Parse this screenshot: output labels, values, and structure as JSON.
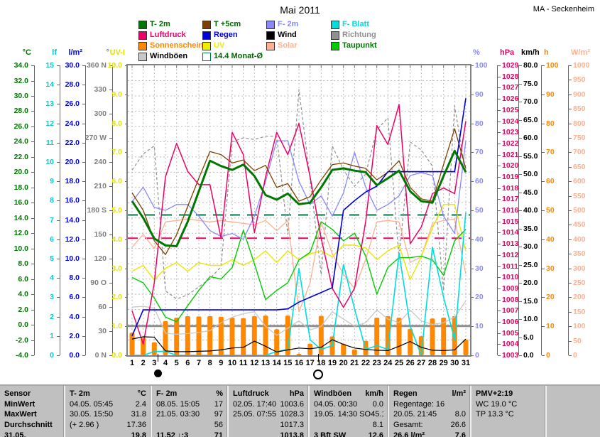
{
  "header": {
    "title": "Mai 2011",
    "station": "MA - Seckenheim"
  },
  "legend": {
    "columns": [
      [
        {
          "label": "T- 2m",
          "swatch": "#007700",
          "text": "#006600"
        },
        {
          "label": "Luftdruck",
          "swatch": "#ee0066",
          "text": "#ee0066"
        },
        {
          "label": "Sonnenschein",
          "swatch": "#ff8800",
          "text": "#ff8800"
        },
        {
          "label": "Windböen",
          "swatch": "#c8c8c8",
          "text": "#000000"
        }
      ],
      [
        {
          "label": "T +5cm",
          "swatch": "#7f3f00",
          "text": "#006600"
        },
        {
          "label": "Regen",
          "swatch": "#0000dd",
          "text": "#0000dd"
        },
        {
          "label": "UV",
          "swatch": "#eeee00",
          "text": "#eeee00"
        },
        {
          "label": "14.4 Monat-Ø",
          "swatch": "#ffffff",
          "outline": "#007744",
          "text": "#006600"
        }
      ],
      [
        {
          "label": "F- 2m",
          "swatch": "#8888ff",
          "text": "#8888ff"
        },
        {
          "label": "Wind",
          "swatch": "#000000",
          "text": "#000000"
        },
        {
          "label": "Solar",
          "swatch": "#ffb090",
          "text": "#ffb090"
        }
      ],
      [
        {
          "label": "F- Blatt",
          "swatch": "#00dddd",
          "text": "#00dddd"
        },
        {
          "label": "Richtung",
          "swatch": "#909090",
          "text": "#909090"
        },
        {
          "label": "Taupunkt",
          "swatch": "#00cc00",
          "text": "#007700"
        }
      ]
    ]
  },
  "axes": {
    "left": [
      {
        "id": "celsius",
        "unit": "°C",
        "color": "#007700",
        "labels": [
          "34.0",
          "32.0",
          "30.0",
          "28.0",
          "26.0",
          "24.0",
          "22.0",
          "20.0",
          "18.0",
          "16.0",
          "14.0",
          "12.0",
          "10.0",
          "8.0",
          "6.0",
          "4.0",
          "2.0",
          "0.0",
          "-2.0",
          "-4.0"
        ]
      },
      {
        "id": "lf",
        "unit": "lf",
        "color": "#00cccc",
        "labels": [
          "15",
          "14",
          "13",
          "12",
          "11",
          "10",
          "9",
          "8",
          "7",
          "6",
          "5",
          "4",
          "3",
          "2",
          "1",
          "0"
        ]
      },
      {
        "id": "liter",
        "unit": "l/m²",
        "color": "#0000ee",
        "labels": [
          "30.0",
          "28.0",
          "26.0",
          "24.0",
          "22.0",
          "20.0",
          "18.0",
          "16.0",
          "14.0",
          "12.0",
          "10.0",
          "8.0",
          "6.0",
          "4.0",
          "2.0",
          "0.0"
        ]
      },
      {
        "id": "grad",
        "unit": "°",
        "color": "#808080",
        "labels": [
          "360 N",
          "330",
          "300",
          "270 W",
          "240",
          "210",
          "180 S",
          "150",
          "120",
          "90  O",
          "60",
          "30",
          "0  N"
        ]
      },
      {
        "id": "uvi",
        "unit": "UV-I",
        "color": "#e2e200",
        "labels": [
          "10.0",
          "9.0",
          "8.0",
          "7.0",
          "6.0",
          "5.0",
          "4.0",
          "3.0",
          "2.0",
          "1.0",
          "0.0"
        ]
      }
    ],
    "right": [
      {
        "id": "prozent",
        "unit": "%",
        "color": "#8888ff",
        "labels": [
          "100",
          "90",
          "80",
          "70",
          "60",
          "50",
          "40",
          "30",
          "20",
          "10",
          "0"
        ]
      },
      {
        "id": "hpa",
        "unit": "hPa",
        "color": "#ee0066",
        "labels": [
          "1029",
          "1028",
          "1027",
          "1026",
          "1025",
          "1024",
          "1023",
          "1022",
          "1021",
          "1020",
          "1019",
          "1018",
          "1017",
          "1016",
          "1015",
          "1014",
          "1013",
          "1012",
          "1011",
          "1010",
          "1009",
          "1008",
          "1007",
          "1006",
          "1005",
          "1004",
          "1003"
        ]
      },
      {
        "id": "kmh",
        "unit": "km/h",
        "color": "#000000",
        "labels": [
          "80.0",
          "75.0",
          "70.0",
          "65.0",
          "60.0",
          "55.0",
          "50.0",
          "45.0",
          "40.0",
          "35.0",
          "30.0",
          "25.0",
          "20.0",
          "15.0",
          "10.0",
          "5.0",
          "0.0"
        ]
      },
      {
        "id": "stunden",
        "unit": "h",
        "color": "#ff8800",
        "labels": [
          "100",
          "90",
          "80",
          "70",
          "60",
          "50",
          "40",
          "30",
          "20",
          "10",
          "0"
        ]
      },
      {
        "id": "wm2",
        "unit": "W/m²",
        "color": "#ffb090",
        "labels": [
          "1000",
          "950",
          "900",
          "850",
          "800",
          "750",
          "700",
          "650",
          "600",
          "550",
          "500",
          "450",
          "400",
          "350",
          "300",
          "250",
          "200",
          "150",
          "100",
          "50",
          "0"
        ]
      }
    ]
  },
  "chart_data": {
    "type": "multi-series-line+bar",
    "title": "Mai 2011",
    "x_days": [
      1,
      2,
      3,
      4,
      5,
      6,
      7,
      8,
      9,
      10,
      11,
      12,
      13,
      14,
      15,
      16,
      17,
      18,
      19,
      20,
      21,
      22,
      23,
      24,
      25,
      26,
      27,
      28,
      29,
      30,
      31
    ],
    "grid": {
      "vertical_per_day": true,
      "horizontal_divisions": 19
    },
    "bars": {
      "id": "sonnenschein",
      "name": "Sonnenschein",
      "unit": "h",
      "color": "#ff8800",
      "axis_range": [
        0,
        100
      ],
      "values": [
        7.8,
        6.0,
        4.5,
        11.8,
        13.0,
        13.5,
        13.4,
        13.5,
        13.3,
        13.0,
        12.8,
        13.5,
        13.7,
        9.0,
        13.7,
        0.5,
        4.0,
        13.6,
        6.5,
        4.0,
        2.0,
        5.0,
        13.0,
        13.5,
        13.0,
        9.1,
        6.6,
        12.7,
        13.0,
        13.5,
        5.4
      ]
    },
    "series": [
      {
        "id": "richtung",
        "name": "Richtung",
        "unit": "°",
        "color": "#909090",
        "dash": "4,3",
        "width": 1.2,
        "axis_range": [
          0,
          360
        ],
        "values": [
          230,
          250,
          260,
          80,
          70,
          75,
          85,
          95,
          110,
          265,
          270,
          268,
          272,
          272,
          150,
          330,
          220,
          100,
          260,
          230,
          210,
          225,
          280,
          295,
          120,
          265,
          255,
          235,
          80,
          310,
          225
        ]
      },
      {
        "id": "windboeen",
        "name": "Windböen",
        "unit": "km/h",
        "color": "#c8c8c8",
        "width": 1.3,
        "axis_range": [
          0,
          80
        ],
        "values": [
          13.3,
          13.5,
          13.0,
          6.1,
          5.8,
          6.0,
          6.3,
          6.8,
          9.0,
          10.5,
          11.5,
          12.0,
          8.0,
          5.5,
          7.5,
          9.5,
          7.0,
          8.0,
          12.0,
          10.0,
          8.0,
          9.0,
          12.5,
          10.0,
          9.0,
          12.5,
          9.5,
          8.5,
          9.0,
          10.5,
          15.0
        ]
      },
      {
        "id": "solar",
        "name": "Solar",
        "unit": "W/m²",
        "color": "#ffb090",
        "width": 1.3,
        "axis_range": [
          0,
          1000
        ],
        "values": [
          373,
          417,
          368,
          460,
          465,
          470,
          465,
          460,
          465,
          460,
          455,
          450,
          465,
          430,
          465,
          150,
          250,
          460,
          350,
          280,
          230,
          330,
          460,
          465,
          460,
          320,
          340,
          455,
          465,
          470,
          280
        ]
      },
      {
        "id": "uv",
        "name": "UV",
        "unit": "UV-I",
        "color": "#e8e800",
        "width": 1.4,
        "axis_range": [
          0,
          10
        ],
        "values": [
          2.9,
          3.1,
          2.6,
          3.0,
          3.2,
          2.9,
          3.2,
          3.1,
          3.1,
          3.3,
          3.1,
          3.3,
          3.6,
          3.2,
          3.6,
          3.3,
          3.5,
          3.6,
          3.4,
          3.8,
          3.8,
          3.7,
          3.3,
          3.6,
          3.8,
          2.6,
          3.4,
          4.4,
          5.2,
          5.2,
          3.6
        ]
      },
      {
        "id": "taupunkt",
        "name": "Taupunkt",
        "unit": "°C",
        "color": "#00cc00",
        "width": 1.4,
        "axis_range": [
          -4,
          34
        ],
        "values": [
          6.2,
          5.5,
          3.5,
          1.0,
          0.4,
          2.5,
          4.5,
          6.3,
          6.0,
          7.5,
          12.4,
          8.0,
          3.3,
          4.5,
          5.5,
          8.5,
          9.5,
          13.5,
          12.5,
          11.0,
          12.0,
          9.0,
          4.0,
          7.5,
          8.8,
          8.8,
          9.0,
          8.5,
          6.5,
          11.0,
          12.5
        ]
      },
      {
        "id": "fblatt",
        "name": "F- Blatt",
        "unit": "lf",
        "color": "#00dddd",
        "width": 1.6,
        "axis_range": [
          0,
          15
        ],
        "values": [
          0,
          0,
          0.2,
          0.2,
          0,
          0,
          0,
          0,
          0,
          0,
          0,
          0,
          0,
          0.2,
          0.3,
          4.5,
          0.8,
          0.3,
          0.5,
          4.7,
          2.4,
          0.3,
          0.5,
          0.3,
          5.3,
          1.5,
          0,
          5.6,
          3.0,
          0.8,
          7.4
        ]
      },
      {
        "id": "f2m",
        "name": "F- 2m",
        "unit": "%",
        "color": "#8888ff",
        "width": 1.3,
        "axis_range": [
          0,
          100
        ],
        "values": [
          53,
          58,
          51,
          50,
          52,
          52,
          48,
          43,
          41,
          42,
          40,
          48,
          60,
          74,
          74,
          60,
          52,
          55,
          48,
          56,
          70,
          58,
          50,
          52,
          55,
          62,
          63,
          62,
          48,
          42,
          74
        ]
      },
      {
        "id": "luftdruck",
        "name": "Luftdruck",
        "unit": "hPa",
        "color": "#ee0066",
        "width": 1.5,
        "axis_range": [
          1003,
          1029
        ],
        "values": [
          1007,
          1004,
          1009.5,
          1019,
          1022,
          1019.5,
          1018.3,
          1018.3,
          1013.5,
          1023,
          1021,
          1014,
          1019,
          1023,
          1021,
          1023.8,
          1019,
          1013.5,
          1009,
          1007.3,
          1009,
          1015,
          1023.6,
          1021.9,
          1025.5,
          1013,
          1014.5,
          1017.5,
          1018,
          1017.5,
          1024
        ]
      },
      {
        "id": "t5cm",
        "name": "T +5cm",
        "unit": "°C",
        "color": "#7f3f00",
        "width": 1.3,
        "axis_range": [
          -4,
          34
        ],
        "values": [
          17.3,
          15.0,
          11.0,
          9.2,
          11.8,
          15.5,
          19.2,
          22.7,
          22.3,
          21.2,
          21.6,
          20.2,
          20.9,
          18.0,
          18.5,
          16.2,
          16.8,
          19.0,
          21.0,
          21.2,
          20.8,
          20.5,
          19.0,
          20.0,
          21.5,
          18.0,
          16.5,
          16.2,
          21.0,
          25.7,
          20.5
        ]
      },
      {
        "id": "regen",
        "name": "Regen (kumuliert)",
        "unit": "l/m²",
        "color": "#0000dd",
        "width": 1.6,
        "axis_range": [
          0,
          30
        ],
        "values": [
          2.0,
          4.7,
          4.7,
          4.7,
          4.7,
          4.7,
          4.7,
          4.7,
          4.7,
          4.7,
          4.7,
          4.7,
          4.7,
          4.7,
          4.8,
          5.5,
          6.0,
          6.5,
          7.0,
          15.0,
          16.0,
          16.9,
          17.5,
          19.0,
          19.0,
          19.0,
          19.0,
          19.0,
          19.0,
          19.0,
          26.6
        ]
      },
      {
        "id": "wind",
        "name": "Wind",
        "unit": "km/h",
        "color": "#000000",
        "width": 1.2,
        "axis_range": [
          0,
          80
        ],
        "values": [
          4.5,
          5.1,
          5.0,
          1.2,
          1.0,
          1.0,
          1.1,
          1.2,
          1.5,
          2.0,
          2.2,
          3.9,
          2.5,
          0.9,
          1.5,
          2.0,
          1.8,
          2.2,
          4.3,
          3.0,
          2.0,
          1.6,
          1.4,
          1.3,
          2.5,
          3.8,
          2.2,
          1.4,
          1.3,
          1.5,
          4.5
        ]
      },
      {
        "id": "t2m",
        "name": "T- 2m",
        "unit": "°C",
        "color": "#007700",
        "width": 3,
        "axis_range": [
          -4,
          34
        ],
        "values": [
          16.2,
          14.0,
          11.3,
          10.4,
          10.3,
          13.5,
          17.5,
          21.5,
          20.8,
          20.3,
          21.0,
          19.5,
          17.0,
          16.4,
          17.2,
          15.8,
          16.0,
          18.0,
          20.3,
          20.5,
          20.2,
          20.0,
          18.3,
          19.2,
          20.2,
          17.5,
          16.2,
          16.0,
          19.5,
          22.8,
          20.0
        ]
      }
    ],
    "reference_lines": [
      {
        "id": "monatsmittel",
        "label": "14.4 Monat-Ø",
        "value": 14.4,
        "axis_range": [
          -4,
          34
        ],
        "color": "#007744",
        "dash": "14,10",
        "width": 2
      },
      {
        "id": "luftdruck-mittel",
        "value": 1013.5,
        "axis_range": [
          1003,
          1029
        ],
        "color": "#ee0066",
        "dash": "14,10",
        "width": 2
      },
      {
        "id": "windboeen-mittel",
        "value": 8.1,
        "axis_range": [
          0,
          80
        ],
        "color": "#909090",
        "dash": "",
        "width": 3
      }
    ],
    "moon_markers": {
      "new_moon_day": 3.3,
      "full_moon_day": 17.7
    }
  },
  "table": {
    "row_labels": [
      "Sensor",
      "MinWert",
      "MaxWert",
      "Durchschnitt",
      "31.05."
    ],
    "columns": [
      {
        "name": "T- 2m",
        "unit": "°C",
        "rows": [
          [
            "04.05.  05:45",
            "2.4"
          ],
          [
            "30.05.  15:50",
            "31.8"
          ],
          [
            "(+ 2.96 )",
            "17.36"
          ],
          [
            "",
            "19.8"
          ]
        ]
      },
      {
        "name": "F- 2m",
        "unit": "%",
        "rows": [
          [
            "08.05.  15:05",
            "17"
          ],
          [
            "21.05.  03:30",
            "97"
          ],
          [
            "",
            "56"
          ],
          [
            "11.52  ↓:3",
            "71"
          ]
        ]
      },
      {
        "name": "Luftdruck",
        "unit": "hPa",
        "rows": [
          [
            "02.05.  17:40",
            "1003.6"
          ],
          [
            "25.05.  07:55",
            "1028.3"
          ],
          [
            "",
            "1017.3"
          ],
          [
            "",
            "1013.8"
          ]
        ]
      },
      {
        "name": "Windböen",
        "unit": "km/h",
        "rows": [
          [
            "04.05.  00:30",
            "0.0"
          ],
          [
            "19.05.  14:30 SO",
            "45.1"
          ],
          [
            "",
            "8.1"
          ],
          [
            "3 Bft SW",
            "12.6"
          ]
        ]
      },
      {
        "name": "Regen",
        "unit": "l/m²",
        "rows": [
          [
            "Regentage: 16",
            ""
          ],
          [
            "20.05.  21:45",
            "8.0"
          ],
          [
            "Gesamt:",
            "26.6"
          ],
          [
            "26.6 l/m²",
            "7.6"
          ]
        ]
      },
      {
        "name": "PMV+2:19",
        "unit": "",
        "rows": [
          [
            "WC 19.0 °C",
            ""
          ],
          [
            "TP 13.3 °C",
            ""
          ],
          [
            "",
            ""
          ],
          [
            "",
            ""
          ]
        ]
      }
    ]
  }
}
